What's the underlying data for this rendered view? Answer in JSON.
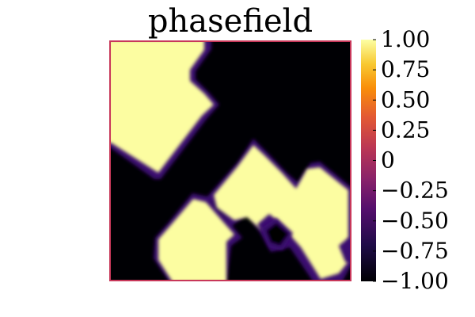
{
  "chart_data": {
    "type": "heatmap",
    "title": "phasefield",
    "xlabel": "",
    "ylabel": "",
    "colormap": "inferno",
    "clim": [
      -1.0,
      1.0
    ],
    "colorbar_ticks": [
      {
        "value": 1.0,
        "label": "1.00"
      },
      {
        "value": 0.75,
        "label": "0.75"
      },
      {
        "value": 0.5,
        "label": "0.50"
      },
      {
        "value": 0.25,
        "label": "0.25"
      },
      {
        "value": 0.0,
        "label": "0"
      },
      {
        "value": -0.25,
        "label": "−0.25"
      },
      {
        "value": -0.5,
        "label": "−0.50"
      },
      {
        "value": -0.75,
        "label": "−0.75"
      },
      {
        "value": -1.0,
        "label": "−1.00"
      }
    ],
    "field_description_regions": [
      {
        "value": 1.0,
        "shape": "diamond-cluster-top-left"
      },
      {
        "value": 1.0,
        "shape": "diamond-cluster-bottom-right"
      },
      {
        "value": -1.0,
        "shape": "background"
      }
    ],
    "frame_color": "#c8385a"
  }
}
